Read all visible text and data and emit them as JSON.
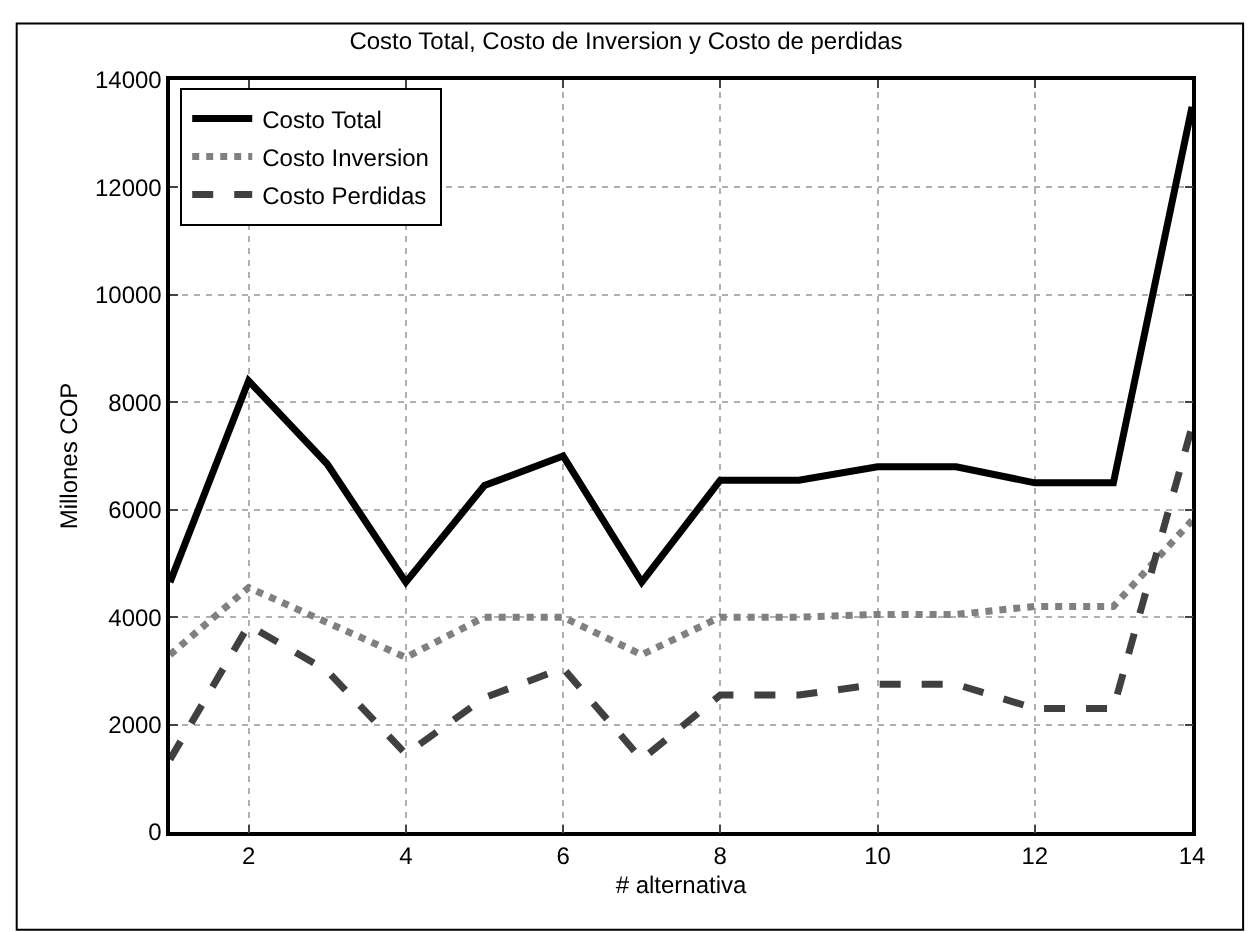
{
  "chart_data": {
    "type": "line",
    "title": "Costo Total, Costo de Inversion y Costo de perdidas",
    "xlabel": "# alternativa",
    "ylabel": "Millones COP",
    "x": [
      1,
      2,
      3,
      4,
      5,
      6,
      7,
      8,
      9,
      10,
      11,
      12,
      13,
      14
    ],
    "series": [
      {
        "name": "Costo Total",
        "color": "#000000",
        "line_style": "solid",
        "values": [
          4650,
          8400,
          6850,
          4650,
          6450,
          7000,
          4650,
          6550,
          6550,
          6800,
          6800,
          6500,
          6500,
          13500
        ]
      },
      {
        "name": "Costo Inversion",
        "color": "#808080",
        "line_style": "dotted",
        "values": [
          3300,
          4550,
          3900,
          3250,
          4000,
          4000,
          3300,
          4000,
          4000,
          4050,
          4050,
          4200,
          4200,
          5800
        ]
      },
      {
        "name": "Costo Perdidas",
        "color": "#404040",
        "line_style": "dashed",
        "values": [
          1350,
          3850,
          3000,
          1450,
          2500,
          3050,
          1350,
          2550,
          2550,
          2750,
          2750,
          2300,
          2300,
          7550
        ]
      }
    ],
    "xlim": [
      1,
      14
    ],
    "xticks": [
      2,
      4,
      6,
      8,
      10,
      12,
      14
    ],
    "ylim": [
      0,
      14000
    ],
    "yticks": [
      0,
      2000,
      4000,
      6000,
      8000,
      10000,
      12000,
      14000
    ],
    "grid": true,
    "legend": "top left",
    "marker": "none"
  }
}
